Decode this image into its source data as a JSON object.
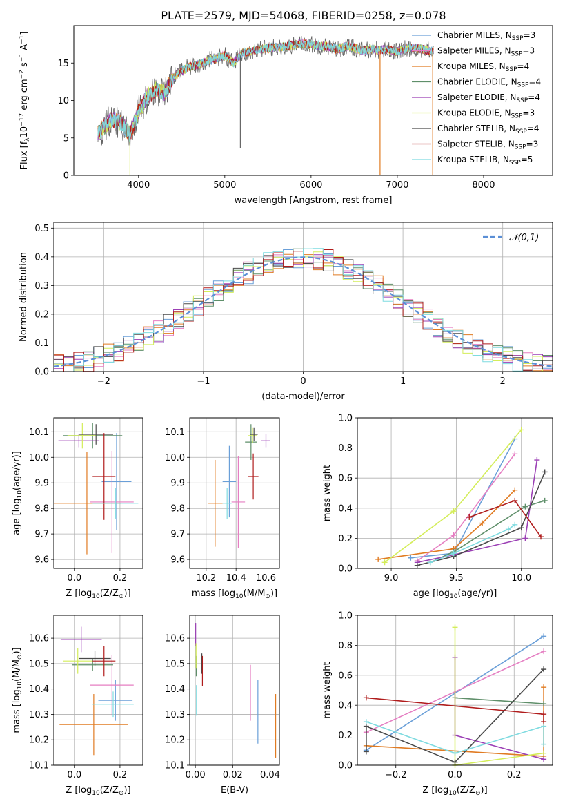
{
  "figure": {
    "title": "PLATE=2579, MJD=54068, FIBERID=0258, z=0.078"
  },
  "models": [
    {
      "name": "Chabrier MILES",
      "nssp": 3,
      "color": "#6a9fd8"
    },
    {
      "name": "Salpeter MILES",
      "nssp": 3,
      "color": "#e57ec2"
    },
    {
      "name": "Kroupa MILES",
      "nssp": 4,
      "color": "#e07b22"
    },
    {
      "name": "Chabrier ELODIE",
      "nssp": 4,
      "color": "#5f8f6a"
    },
    {
      "name": "Salpeter ELODIE",
      "nssp": 4,
      "color": "#9b3fb5"
    },
    {
      "name": "Kroupa ELODIE",
      "nssp": 3,
      "color": "#d4ed5a"
    },
    {
      "name": "Chabrier STELIB",
      "nssp": 4,
      "color": "#4a4a4a"
    },
    {
      "name": "Salpeter STELIB",
      "nssp": 3,
      "color": "#b01c1c"
    },
    {
      "name": "Kroupa STELIB",
      "nssp": 5,
      "color": "#7fdbe0"
    }
  ],
  "chart_data": [
    {
      "id": "spectrum",
      "type": "line",
      "xlabel": "wavelength [Angstrom, rest frame]",
      "ylabel": "Flux [f_λ10^-17 erg cm^-2 s^-1 A^-1]",
      "xlim": [
        3250,
        8800
      ],
      "ylim": [
        0,
        20
      ],
      "xticks": [
        4000,
        5000,
        6000,
        7000,
        8000
      ],
      "yticks": [
        0,
        5,
        10,
        15
      ],
      "legend": "top-right",
      "spectrum_envelope": {
        "x": [
          3530,
          3600,
          3700,
          3800,
          3900,
          4000,
          4100,
          4200,
          4300,
          4400,
          4500,
          4600,
          4700,
          4800,
          4900,
          5000,
          5100,
          5200,
          5300,
          5400,
          5500,
          5600,
          5700,
          5800,
          5900,
          6000,
          6100,
          6200,
          6300,
          6400,
          6500,
          6600,
          6700,
          6800,
          6900,
          7000,
          7100,
          7200,
          7300,
          7400
        ],
        "y": [
          5.5,
          6.5,
          7.5,
          7.0,
          5.5,
          8.5,
          10.5,
          11.5,
          11.0,
          13.0,
          14.0,
          14.5,
          14.8,
          15.3,
          15.6,
          16.0,
          15.0,
          16.3,
          16.6,
          16.8,
          17.0,
          17.1,
          17.2,
          17.4,
          17.6,
          17.5,
          17.3,
          17.2,
          16.8,
          17.2,
          17.0,
          16.6,
          16.9,
          16.7,
          16.8,
          16.5,
          16.9,
          17.0,
          16.8,
          16.6
        ]
      }
    },
    {
      "id": "residuals",
      "type": "line",
      "xlabel": "(data-model)/error",
      "ylabel": "Normed distribution",
      "xlim": [
        -2.5,
        2.5
      ],
      "ylim": [
        0,
        0.52
      ],
      "xticks": [
        -2,
        -1,
        0,
        1,
        2
      ],
      "yticks": [
        0.0,
        0.1,
        0.2,
        0.3,
        0.4,
        0.5
      ],
      "reference_label": "𝒩(0,1)",
      "reference_color": "#5b8fd6",
      "hist_bins": {
        "start": -2.5,
        "width": 0.1
      }
    },
    {
      "id": "z-age",
      "type": "scatter",
      "xlabel": "Z [log10(Z/Z⊙)]",
      "ylabel": "age  [log10(age/yr)]",
      "xlim": [
        -0.09,
        0.3
      ],
      "ylim": [
        9.565,
        10.155
      ],
      "xticks": [
        0.0,
        0.2
      ],
      "yticks": [
        9.6,
        9.7,
        9.8,
        9.9,
        10.0,
        10.1
      ],
      "points": [
        {
          "model": 0,
          "x": 0.185,
          "y": 9.905,
          "xerr": 0.065,
          "yerr": 0.19
        },
        {
          "model": 1,
          "x": 0.165,
          "y": 9.825,
          "xerr": 0.095,
          "yerr": 0.2
        },
        {
          "model": 2,
          "x": 0.055,
          "y": 9.82,
          "xerr": 0.15,
          "yerr": 0.2
        },
        {
          "model": 3,
          "x": 0.08,
          "y": 10.085,
          "xerr": 0.13,
          "yerr": 0.05
        },
        {
          "model": 4,
          "x": 0.02,
          "y": 10.065,
          "xerr": 0.09,
          "yerr": 0.025
        },
        {
          "model": 5,
          "x": 0.035,
          "y": 10.085,
          "xerr": 0.065,
          "yerr": 0.05
        },
        {
          "model": 6,
          "x": 0.095,
          "y": 10.09,
          "xerr": 0.075,
          "yerr": 0.04
        },
        {
          "model": 7,
          "x": 0.13,
          "y": 9.925,
          "xerr": 0.05,
          "yerr": 0.17
        },
        {
          "model": 8,
          "x": 0.18,
          "y": 9.82,
          "xerr": 0.1,
          "yerr": 0.06
        }
      ]
    },
    {
      "id": "mass-age",
      "type": "scatter",
      "xlabel": "mass [log10(M/M⊙)]",
      "ylabel": "",
      "xlim": [
        10.09,
        10.69
      ],
      "ylim": [
        9.565,
        10.155
      ],
      "xticks": [
        10.2,
        10.4,
        10.6
      ],
      "yticks": [
        9.6,
        9.7,
        9.8,
        9.9,
        10.0,
        10.1
      ],
      "points": [
        {
          "model": 0,
          "x": 10.355,
          "y": 9.905,
          "xerr": 0.045,
          "yerr": 0.14
        },
        {
          "model": 1,
          "x": 10.415,
          "y": 9.825,
          "xerr": 0.045,
          "yerr": 0.18
        },
        {
          "model": 2,
          "x": 10.26,
          "y": 9.82,
          "xerr": 0.05,
          "yerr": 0.17
        },
        {
          "model": 3,
          "x": 10.5,
          "y": 10.06,
          "xerr": 0.04,
          "yerr": 0.07
        },
        {
          "model": 4,
          "x": 10.6,
          "y": 10.065,
          "xerr": 0.03,
          "yerr": 0.025
        },
        {
          "model": 5,
          "x": 10.51,
          "y": 10.085,
          "xerr": 0.03,
          "yerr": 0.03
        },
        {
          "model": 6,
          "x": 10.52,
          "y": 10.09,
          "xerr": 0.025,
          "yerr": 0.025
        },
        {
          "model": 7,
          "x": 10.515,
          "y": 9.925,
          "xerr": 0.035,
          "yerr": 0.09
        },
        {
          "model": 8,
          "x": 10.34,
          "y": 9.82,
          "xerr": 0.03,
          "yerr": 0.06
        }
      ]
    },
    {
      "id": "age-weight",
      "type": "line",
      "xlabel": "age  [log10(age/yr)]",
      "ylabel": "mass weight",
      "xlim": [
        8.74,
        10.24
      ],
      "ylim": [
        0.0,
        1.0
      ],
      "xticks": [
        9.0,
        9.5,
        10.0
      ],
      "yticks": [
        0.0,
        0.2,
        0.4,
        0.6,
        0.8,
        1.0
      ],
      "series": [
        {
          "model": 0,
          "x": [
            9.15,
            9.48,
            9.95
          ],
          "y": [
            0.07,
            0.1,
            0.86
          ]
        },
        {
          "model": 1,
          "x": [
            9.2,
            9.48,
            9.95
          ],
          "y": [
            0.05,
            0.22,
            0.76
          ]
        },
        {
          "model": 2,
          "x": [
            8.9,
            9.48,
            9.7,
            9.95
          ],
          "y": [
            0.06,
            0.13,
            0.3,
            0.52
          ]
        },
        {
          "model": 3,
          "x": [
            9.3,
            9.48,
            10.03,
            10.18
          ],
          "y": [
            0.04,
            0.11,
            0.41,
            0.45
          ]
        },
        {
          "model": 4,
          "x": [
            9.2,
            9.48,
            10.03,
            10.12
          ],
          "y": [
            0.04,
            0.09,
            0.2,
            0.72
          ]
        },
        {
          "model": 5,
          "x": [
            8.95,
            9.48,
            10.0
          ],
          "y": [
            0.04,
            0.38,
            0.92
          ]
        },
        {
          "model": 6,
          "x": [
            9.2,
            9.48,
            10.0,
            10.18
          ],
          "y": [
            0.02,
            0.08,
            0.27,
            0.64
          ]
        },
        {
          "model": 7,
          "x": [
            9.6,
            9.95,
            10.15
          ],
          "y": [
            0.34,
            0.45,
            0.21
          ]
        },
        {
          "model": 8,
          "x": [
            9.3,
            9.48,
            9.9,
            9.95
          ],
          "y": [
            0.04,
            0.1,
            0.26,
            0.29
          ]
        }
      ]
    },
    {
      "id": "z-mass",
      "type": "scatter",
      "xlabel": "Z [log10(Z/Z⊙)]",
      "ylabel": "mass [log10(M/M⊙)]",
      "xlim": [
        -0.09,
        0.3
      ],
      "ylim": [
        10.1,
        10.69
      ],
      "xticks": [
        0.0,
        0.2
      ],
      "yticks": [
        10.1,
        10.2,
        10.3,
        10.4,
        10.5,
        10.6
      ],
      "points": [
        {
          "model": 0,
          "x": 0.18,
          "y": 10.355,
          "xerr": 0.075,
          "yerr": 0.08
        },
        {
          "model": 1,
          "x": 0.165,
          "y": 10.415,
          "xerr": 0.095,
          "yerr": 0.12
        },
        {
          "model": 2,
          "x": 0.085,
          "y": 10.26,
          "xerr": 0.15,
          "yerr": 0.12
        },
        {
          "model": 3,
          "x": 0.08,
          "y": 10.495,
          "xerr": 0.09,
          "yerr": 0.025
        },
        {
          "model": 4,
          "x": 0.03,
          "y": 10.595,
          "xerr": 0.09,
          "yerr": 0.05
        },
        {
          "model": 5,
          "x": 0.015,
          "y": 10.51,
          "xerr": 0.065,
          "yerr": 0.05
        },
        {
          "model": 6,
          "x": 0.09,
          "y": 10.52,
          "xerr": 0.07,
          "yerr": 0.03
        },
        {
          "model": 7,
          "x": 0.13,
          "y": 10.51,
          "xerr": 0.05,
          "yerr": 0.06
        },
        {
          "model": 8,
          "x": 0.17,
          "y": 10.34,
          "xerr": 0.09,
          "yerr": 0.05
        }
      ]
    },
    {
      "id": "ebv-mass",
      "type": "scatter",
      "xlabel": "E(B-V)",
      "ylabel": "",
      "xlim": [
        -0.003,
        0.045
      ],
      "ylim": [
        10.1,
        10.69
      ],
      "xticks": [
        0.0,
        0.02,
        0.04
      ],
      "yticks": [
        10.1,
        10.2,
        10.3,
        10.4,
        10.5,
        10.6
      ],
      "points": [
        {
          "model": 0,
          "x": 0.0335,
          "y": 10.31,
          "yerr": 0.125
        },
        {
          "model": 1,
          "x": 0.0295,
          "y": 10.385,
          "yerr": 0.11
        },
        {
          "model": 2,
          "x": 0.043,
          "y": 10.255,
          "yerr": 0.125
        },
        {
          "model": 3,
          "x": 0.0005,
          "y": 10.49,
          "yerr": 0.04
        },
        {
          "model": 4,
          "x": 0.0002,
          "y": 10.615,
          "yerr": 0.045
        },
        {
          "model": 5,
          "x": 0.0004,
          "y": 10.53,
          "yerr": 0.05
        },
        {
          "model": 6,
          "x": 0.0035,
          "y": 10.5,
          "yerr": 0.04
        },
        {
          "model": 7,
          "x": 0.0038,
          "y": 10.47,
          "yerr": 0.06
        },
        {
          "model": 8,
          "x": 0.0006,
          "y": 10.355,
          "yerr": 0.06
        }
      ]
    },
    {
      "id": "z-weight",
      "type": "line",
      "xlabel": "Z [log10(Z/Z⊙)]",
      "ylabel": "mass weight",
      "xlim": [
        -0.33,
        0.33
      ],
      "ylim": [
        0.0,
        1.0
      ],
      "xticks": [
        -0.2,
        0.0,
        0.2
      ],
      "yticks": [
        0.0,
        0.2,
        0.4,
        0.6,
        0.8,
        1.0
      ],
      "series": [
        {
          "model": 0,
          "x": [
            -0.3,
            0.3
          ],
          "y": [
            0.1,
            0.86
          ]
        },
        {
          "model": 1,
          "x": [
            -0.3,
            0.3
          ],
          "y": [
            0.22,
            0.76
          ]
        },
        {
          "model": 2,
          "x": [
            -0.3,
            0.3,
            0.3
          ],
          "y": [
            0.13,
            0.06,
            0.52
          ]
        },
        {
          "model": 3,
          "x": [
            0.0,
            0.3
          ],
          "y": [
            0.45,
            0.41
          ]
        },
        {
          "model": 4,
          "x": [
            0.0,
            0.0,
            0.3
          ],
          "y": [
            0.72,
            0.2,
            0.04
          ]
        },
        {
          "model": 5,
          "x": [
            0.0,
            0.0,
            0.3
          ],
          "y": [
            0.92,
            0.0,
            0.08
          ]
        },
        {
          "model": 6,
          "x": [
            -0.3,
            -0.3,
            0.0,
            0.3
          ],
          "y": [
            0.09,
            0.26,
            0.02,
            0.64
          ]
        },
        {
          "model": 7,
          "x": [
            -0.3,
            0.3,
            0.3
          ],
          "y": [
            0.45,
            0.34,
            0.29
          ]
        },
        {
          "model": 8,
          "x": [
            -0.3,
            0.0,
            0.3,
            0.3
          ],
          "y": [
            0.29,
            0.08,
            0.26,
            0.14
          ]
        }
      ]
    }
  ]
}
